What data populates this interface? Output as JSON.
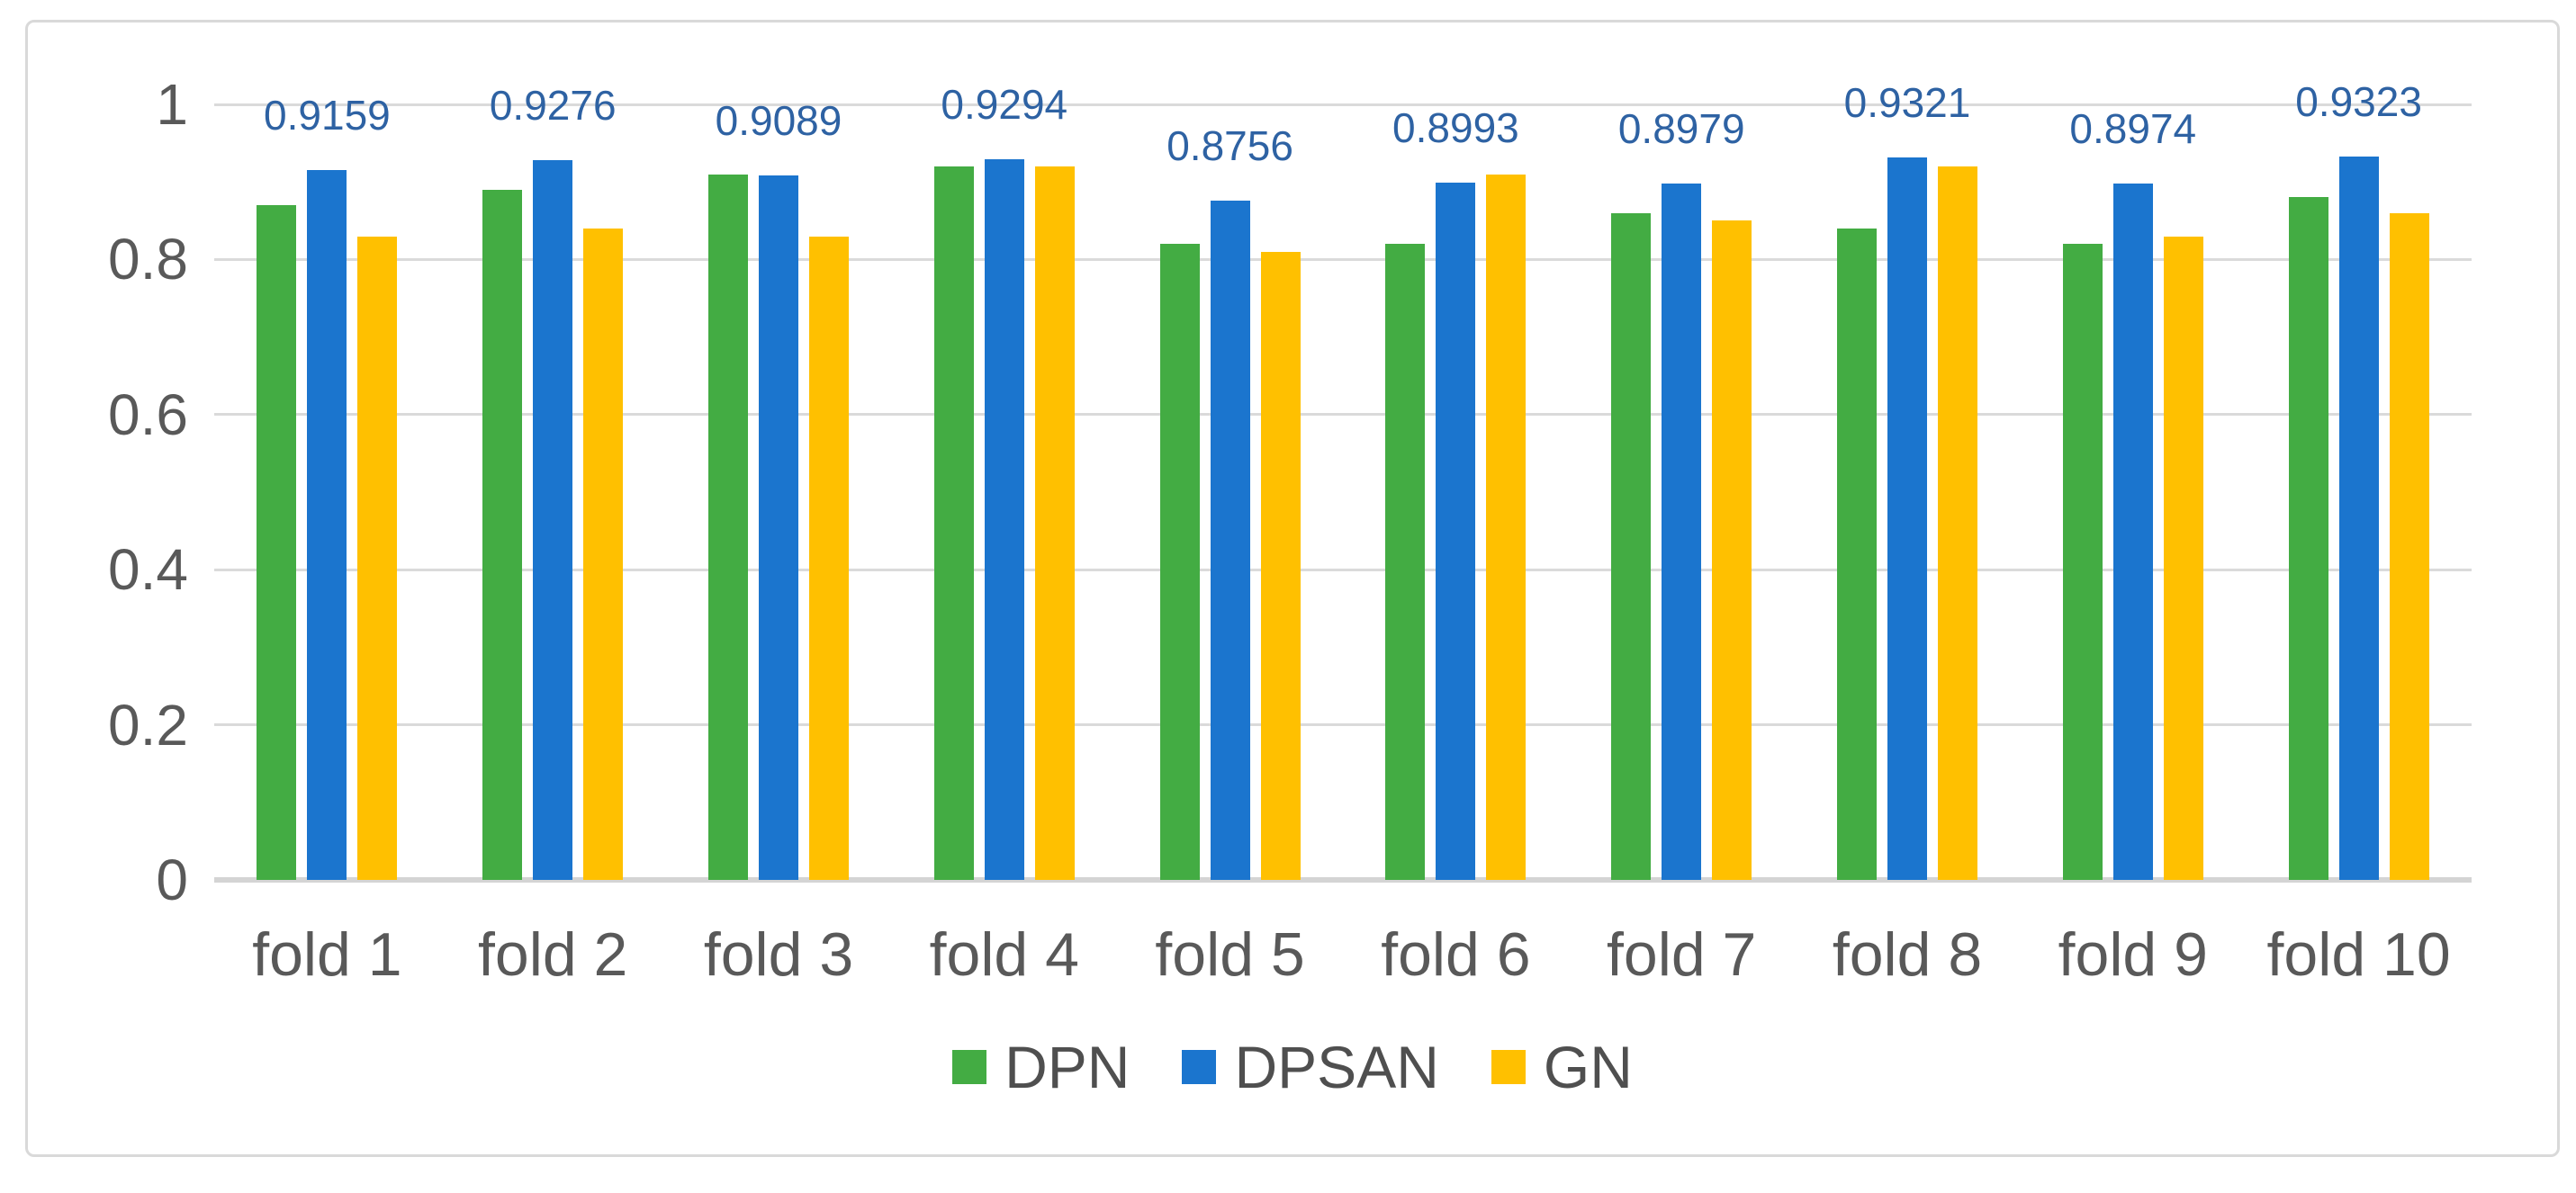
{
  "chart_data": {
    "type": "bar",
    "title": "",
    "xlabel": "",
    "ylabel": "",
    "categories": [
      "fold 1",
      "fold 2",
      "fold 3",
      "fold 4",
      "fold 5",
      "fold 6",
      "fold 7",
      "fold 8",
      "fold 9",
      "fold 10"
    ],
    "series": [
      {
        "name": "DPN",
        "color": "#43AC43",
        "values": [
          0.87,
          0.89,
          0.91,
          0.92,
          0.82,
          0.82,
          0.86,
          0.84,
          0.82,
          0.88
        ]
      },
      {
        "name": "DPSAN",
        "color": "#1B75CE",
        "values": [
          0.9159,
          0.9276,
          0.9089,
          0.9294,
          0.8756,
          0.8993,
          0.8979,
          0.9321,
          0.8974,
          0.9323
        ]
      },
      {
        "name": "GN",
        "color": "#FFC000",
        "values": [
          0.83,
          0.84,
          0.83,
          0.92,
          0.81,
          0.91,
          0.85,
          0.92,
          0.83,
          0.86
        ]
      }
    ],
    "data_labels": {
      "on_series": "DPSAN",
      "labels": [
        "0.9159",
        "0.9276",
        "0.9089",
        "0.9294",
        "0.8756",
        "0.8993",
        "0.8979",
        "0.9321",
        "0.8974",
        "0.9323"
      ],
      "color": "#2E62A3"
    },
    "y_axis": {
      "min": 0,
      "max": 1,
      "tick_values": [
        0,
        0.2,
        0.4,
        0.6,
        0.8,
        1
      ],
      "tick_labels": [
        "0",
        "0.2",
        "0.4",
        "0.6",
        "0.8",
        "1"
      ]
    },
    "grid": true,
    "legend": [
      "DPN",
      "DPSAN",
      "GN"
    ],
    "legend_position": "bottom"
  },
  "colors": {
    "grid": "#DADADA",
    "axis_line": "#D4D4D4",
    "axis_text": "#595959",
    "legend_text": "#4F4F4F",
    "frame_border": "#D9D9D9",
    "background": "#FFFFFF"
  }
}
